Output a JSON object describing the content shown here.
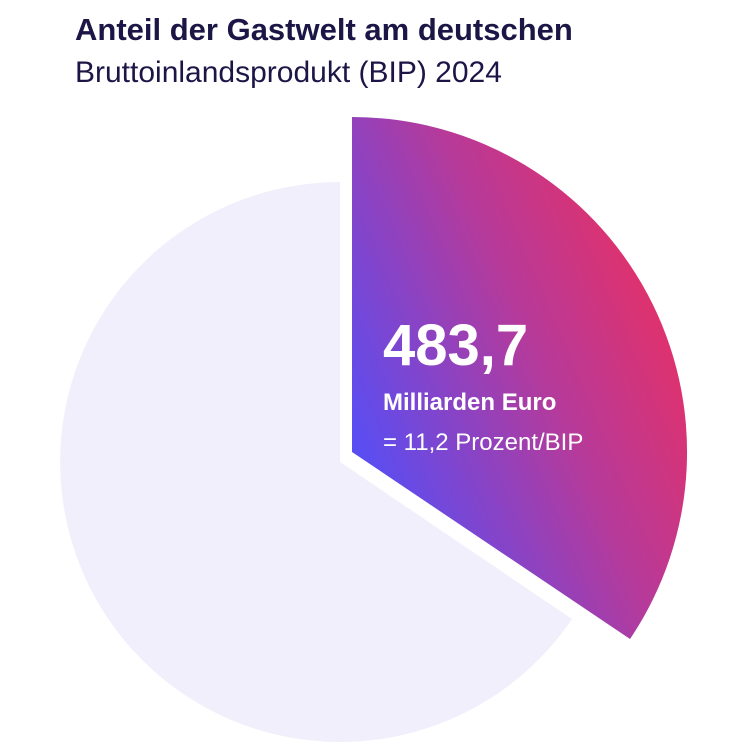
{
  "title": "Anteil der Gastwelt am deutschen",
  "subtitle": "Bruttoinlandsprodukt (BIP) 2024",
  "highlight": {
    "amount": "483,7",
    "unit": "Milliarden Euro",
    "share": "= 11,2 Prozent/BIP"
  }
}
